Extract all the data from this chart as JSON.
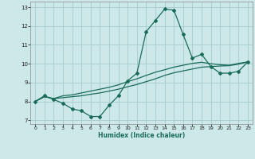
{
  "xlabel": "Humidex (Indice chaleur)",
  "background_color": "#cde8e8",
  "grid_color": "#aacfcf",
  "line_color": "#1a6b5a",
  "xlim": [
    -0.5,
    23.5
  ],
  "ylim": [
    6.8,
    13.3
  ],
  "xticks": [
    0,
    1,
    2,
    3,
    4,
    5,
    6,
    7,
    8,
    9,
    10,
    11,
    12,
    13,
    14,
    15,
    16,
    17,
    18,
    19,
    20,
    21,
    22,
    23
  ],
  "yticks": [
    7,
    8,
    9,
    10,
    11,
    12,
    13
  ],
  "series0": [
    8.0,
    8.3,
    8.1,
    7.9,
    7.6,
    7.5,
    7.2,
    7.2,
    7.8,
    8.3,
    9.1,
    9.5,
    11.7,
    12.3,
    12.9,
    12.85,
    11.55,
    10.3,
    10.5,
    9.85,
    9.5,
    9.5,
    9.6,
    10.1
  ],
  "series1": [
    8.0,
    8.25,
    8.15,
    8.2,
    8.25,
    8.3,
    8.38,
    8.45,
    8.55,
    8.65,
    8.78,
    8.9,
    9.05,
    9.2,
    9.38,
    9.52,
    9.62,
    9.72,
    9.82,
    9.85,
    9.88,
    9.9,
    9.98,
    10.1
  ],
  "series2": [
    8.0,
    8.25,
    8.15,
    8.3,
    8.35,
    8.45,
    8.55,
    8.65,
    8.75,
    8.88,
    9.05,
    9.2,
    9.38,
    9.55,
    9.68,
    9.82,
    9.92,
    10.02,
    10.08,
    10.0,
    9.95,
    9.92,
    10.02,
    10.1
  ]
}
